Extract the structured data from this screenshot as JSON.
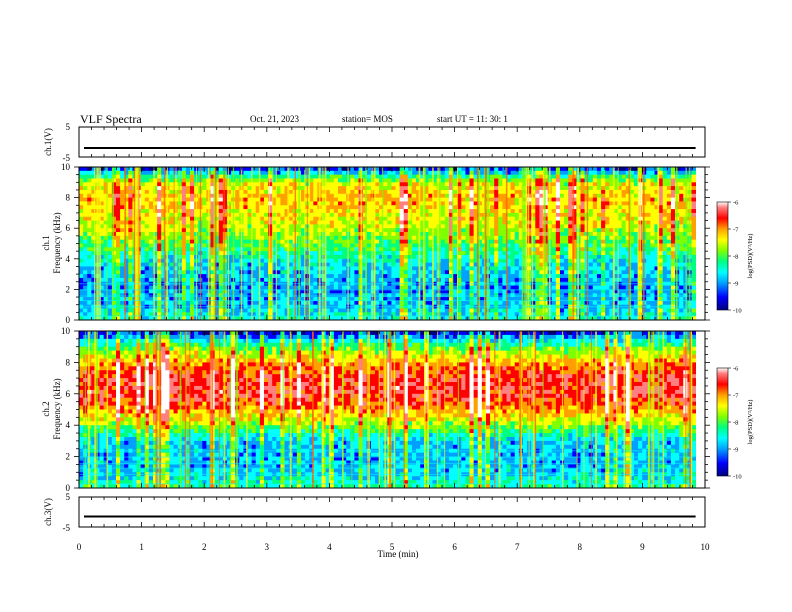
{
  "header": {
    "title": "VLF Spectra",
    "date": "Oct. 21, 2023",
    "station": "station= MOS",
    "start_ut": "start UT =  11: 30: 1"
  },
  "colors": {
    "colormap": [
      "#000080",
      "#0000ff",
      "#00a0ff",
      "#00ffff",
      "#00ff80",
      "#80ff00",
      "#ffff00",
      "#ffa000",
      "#ff0000",
      "#ff8080",
      "#ffffff"
    ],
    "trace": "#000000"
  },
  "chart_data": [
    {
      "type": "line",
      "name": "ch1-waveform",
      "ylabel": "ch.1(V)",
      "ylim": [
        -5,
        5
      ],
      "yticks": [
        "5",
        "-5"
      ],
      "x": [
        0,
        10
      ],
      "y": [
        -1,
        -1
      ],
      "xlim": [
        0,
        10
      ]
    },
    {
      "type": "heatmap",
      "name": "ch1-spectrogram",
      "ylabel_lines": [
        "ch.1",
        "Frequency (kHz)"
      ],
      "ylim": [
        0,
        10
      ],
      "yticks": [
        "0",
        "2",
        "4",
        "6",
        "8",
        "10"
      ],
      "xlim": [
        0,
        10
      ],
      "data_extent_min": 9.85,
      "colorbar": {
        "label": "log(PSD)(V²/Hz)",
        "range": [
          -10,
          -6
        ],
        "ticks": [
          "-6",
          "-7",
          "-8",
          "-9",
          "-10"
        ]
      },
      "freq_profile_khz": [
        0,
        1,
        2,
        3,
        4,
        5,
        6,
        7,
        8,
        9,
        10
      ],
      "level_log_psd": [
        -8.6,
        -9.0,
        -9.1,
        -9.0,
        -8.7,
        -8.2,
        -7.8,
        -7.6,
        -7.4,
        -7.8,
        -9.6
      ]
    },
    {
      "type": "heatmap",
      "name": "ch2-spectrogram",
      "ylabel_lines": [
        "ch.2",
        "Frequency (kHz)"
      ],
      "ylim": [
        0,
        10
      ],
      "yticks": [
        "0",
        "2",
        "4",
        "6",
        "8",
        "10"
      ],
      "xlim": [
        0,
        10
      ],
      "data_extent_min": 9.85,
      "colorbar": {
        "label": "log(PSD)(V²/Hz)",
        "range": [
          -10,
          -6
        ],
        "ticks": [
          "-6",
          "-7",
          "-8",
          "-9",
          "-10"
        ]
      },
      "freq_profile_khz": [
        0,
        1,
        2,
        3,
        4,
        5,
        6,
        7,
        8,
        9,
        10
      ],
      "level_log_psd": [
        -8.4,
        -8.9,
        -9.0,
        -8.9,
        -8.0,
        -7.2,
        -6.8,
        -6.8,
        -7.3,
        -8.2,
        -9.6
      ]
    },
    {
      "type": "line",
      "name": "ch3-waveform",
      "ylabel": "ch.3(V)",
      "ylim": [
        -5,
        5
      ],
      "yticks": [
        "5",
        "-5"
      ],
      "x": [
        0,
        10
      ],
      "y": [
        -1.5,
        -1.5
      ],
      "xlim": [
        0,
        10
      ],
      "xlabel": "Time (min)",
      "xticks": [
        "0",
        "1",
        "2",
        "3",
        "4",
        "5",
        "6",
        "7",
        "8",
        "9",
        "10"
      ]
    }
  ]
}
